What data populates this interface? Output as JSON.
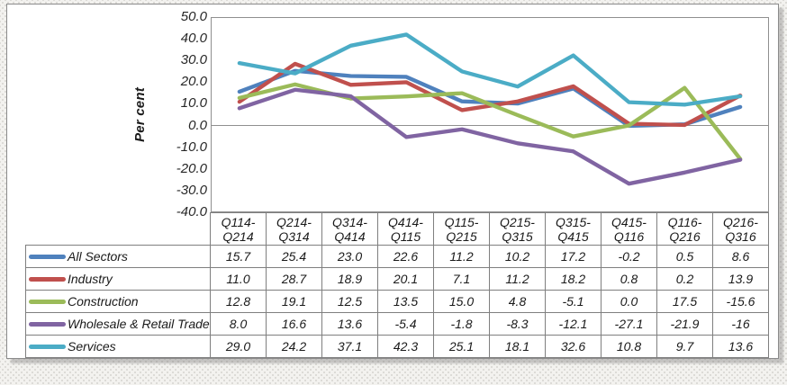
{
  "chart": {
    "frame_border_color": "#8b8b8b",
    "plot_border_color": "#8f8f8f",
    "zero_line_color": "#8f8f8f",
    "table_border_color": "#7f7f7f",
    "text_color": "#1a1a1a",
    "background": "#ffffff",
    "line_width": 4.4
  },
  "chart_data": {
    "type": "line",
    "title": "",
    "xlabel": "",
    "ylabel": "Per cent",
    "ylim": [
      -40,
      50
    ],
    "ytick_step": 10,
    "yticks": [
      "50.0",
      "40.0",
      "30.0",
      "20.0",
      "10.0",
      "0.0",
      "-10.0",
      "-20.0",
      "-30.0",
      "-40.0"
    ],
    "grid": "zero-line-only",
    "legend_position": "data-table-left-column",
    "categories": [
      "Q114-Q214",
      "Q214-Q314",
      "Q314-Q414",
      "Q414-Q115",
      "Q115-Q215",
      "Q215-Q315",
      "Q315-Q415",
      "Q415-Q116",
      "Q116-Q216",
      "Q216-Q316"
    ],
    "series": [
      {
        "name": "All Sectors",
        "color": "#4F81BD",
        "values": [
          15.7,
          25.4,
          23.0,
          22.6,
          11.2,
          10.2,
          17.2,
          -0.2,
          0.5,
          8.6
        ],
        "display": [
          "15.7",
          "25.4",
          "23.0",
          "22.6",
          "11.2",
          "10.2",
          "17.2",
          "-0.2",
          "0.5",
          "8.6"
        ]
      },
      {
        "name": "Industry",
        "color": "#C0504D",
        "values": [
          11.0,
          28.7,
          18.9,
          20.1,
          7.1,
          11.2,
          18.2,
          0.8,
          0.2,
          13.9
        ],
        "display": [
          "11.0",
          "28.7",
          "18.9",
          "20.1",
          "7.1",
          "11.2",
          "18.2",
          "0.8",
          "0.2",
          "13.9"
        ]
      },
      {
        "name": "Construction",
        "color": "#9BBB59",
        "values": [
          12.8,
          19.1,
          12.5,
          13.5,
          15.0,
          4.8,
          -5.1,
          0.0,
          17.5,
          -15.6
        ],
        "display": [
          "12.8",
          "19.1",
          "12.5",
          "13.5",
          "15.0",
          "4.8",
          "-5.1",
          "0.0",
          "17.5",
          "-15.6"
        ]
      },
      {
        "name": "Wholesale & Retail Trade",
        "color": "#8064A2",
        "values": [
          8.0,
          16.6,
          13.6,
          -5.4,
          -1.8,
          -8.3,
          -12.1,
          -27.1,
          -21.9,
          -16
        ],
        "display": [
          "8.0",
          "16.6",
          "13.6",
          "-5.4",
          "-1.8",
          "-8.3",
          "-12.1",
          "-27.1",
          "-21.9",
          "-16"
        ]
      },
      {
        "name": "Services",
        "color": "#4BACC6",
        "values": [
          29.0,
          24.2,
          37.1,
          42.3,
          25.1,
          18.1,
          32.6,
          10.8,
          9.7,
          13.6
        ],
        "display": [
          "29.0",
          "24.2",
          "37.1",
          "42.3",
          "25.1",
          "18.1",
          "32.6",
          "10.8",
          "9.7",
          "13.6"
        ]
      }
    ]
  }
}
